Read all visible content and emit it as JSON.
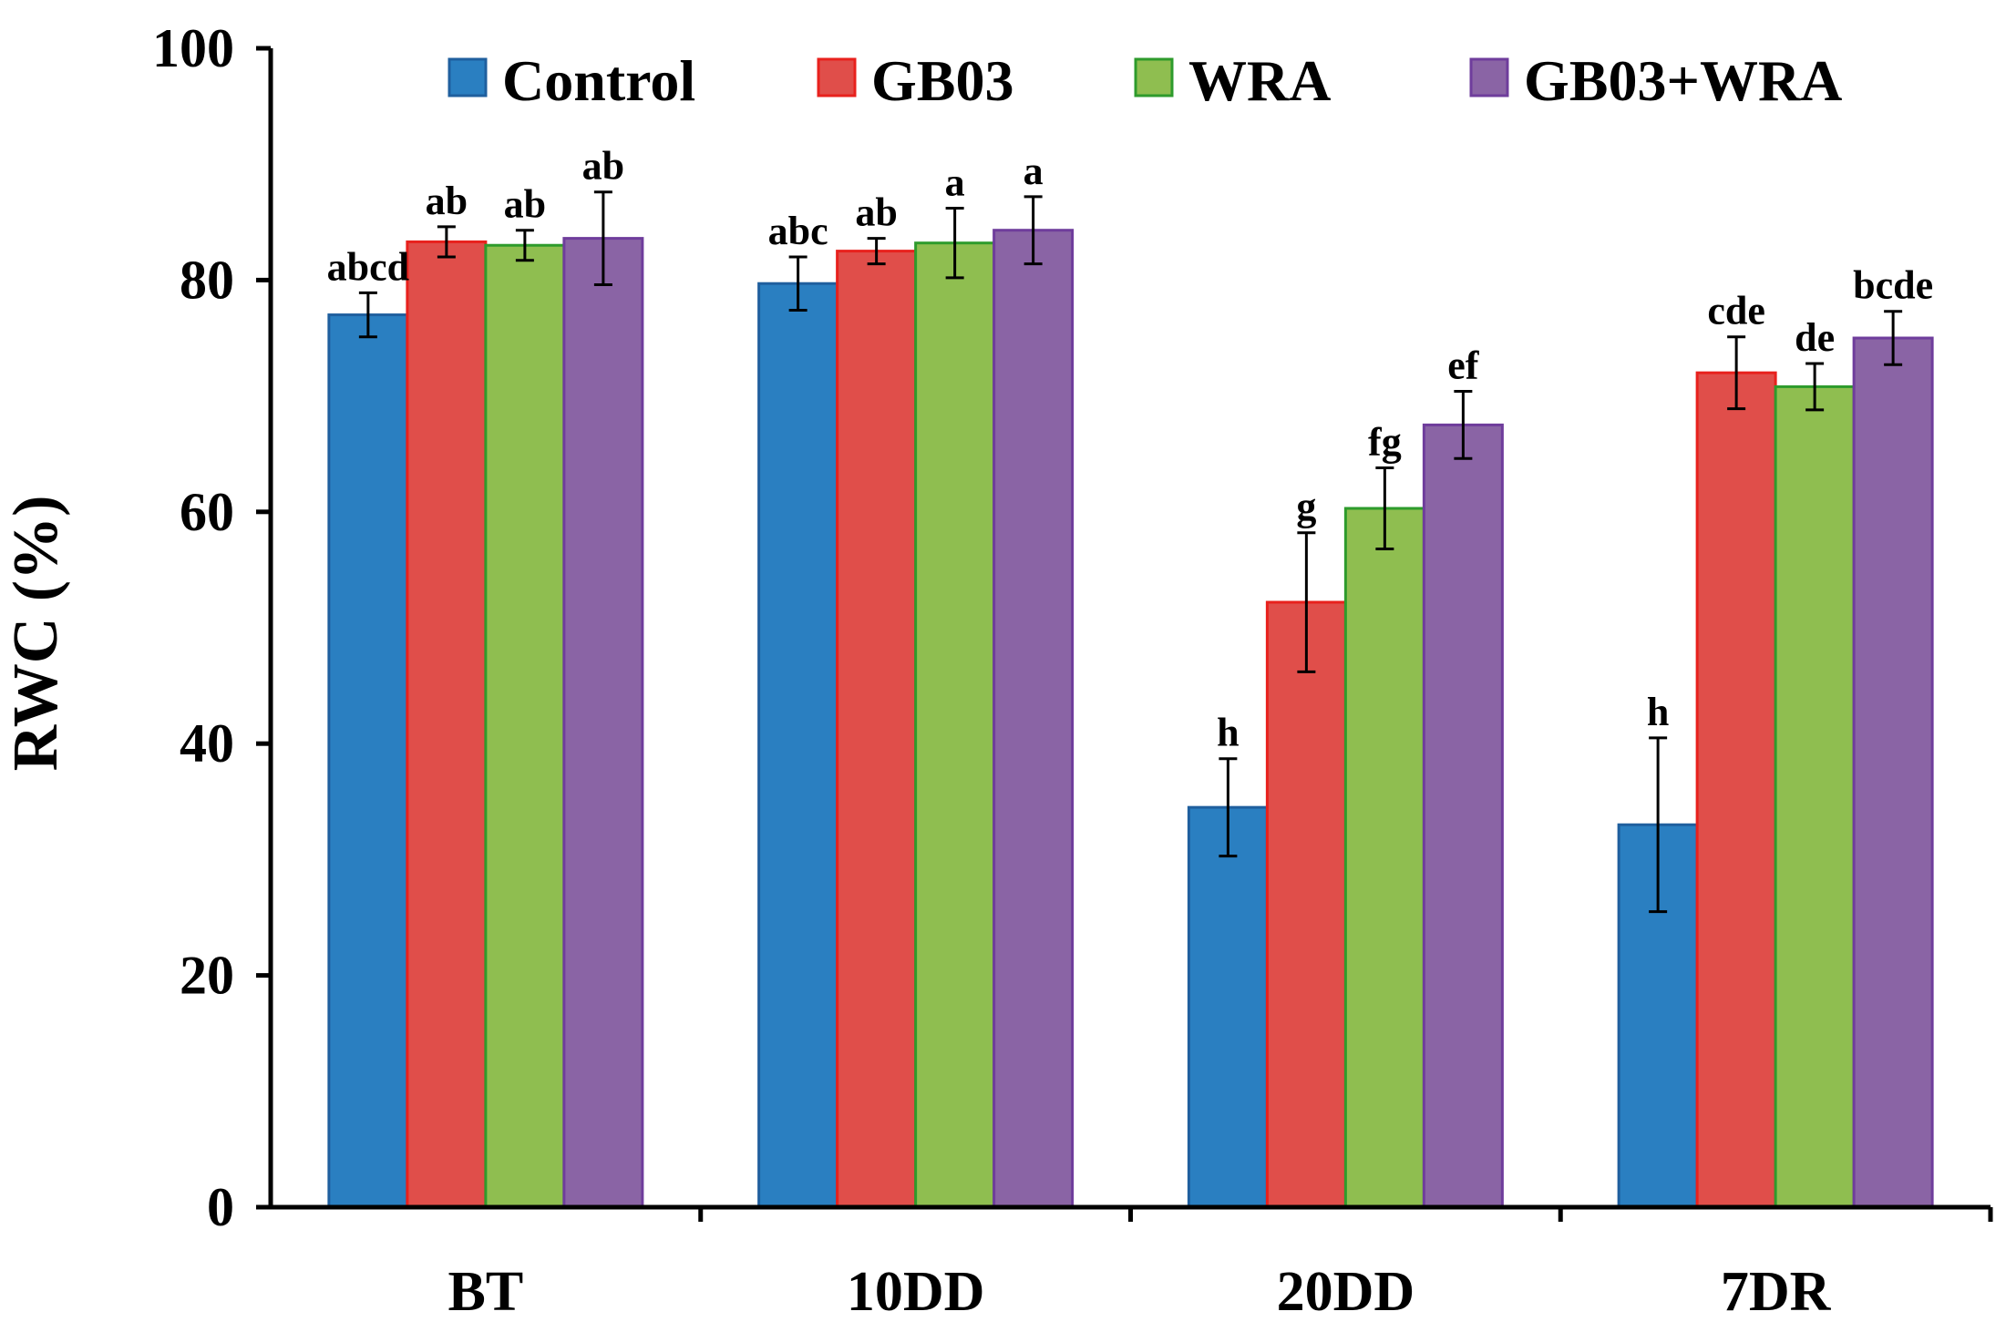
{
  "chart_data": {
    "type": "bar",
    "title": "",
    "xlabel": "",
    "ylabel": "RWC (%)",
    "ylim": [
      0,
      100
    ],
    "yticks": [
      0,
      20,
      40,
      60,
      80,
      100
    ],
    "categories": [
      "BT",
      "10DD",
      "20DD",
      "7DR"
    ],
    "legend_position": "top",
    "series": [
      {
        "name": "Control",
        "fill": "#2a7fc1",
        "stroke": "#1f5f9e",
        "values": [
          77.0,
          79.7,
          34.5,
          33.0
        ],
        "errors": [
          1.9,
          2.3,
          4.2,
          7.5
        ],
        "letters": [
          "abcd",
          "abc",
          "h",
          "h"
        ]
      },
      {
        "name": "GB03",
        "fill": "#e04e4a",
        "stroke": "#e8211d",
        "values": [
          83.3,
          82.5,
          52.2,
          72.0
        ],
        "errors": [
          1.3,
          1.1,
          6.0,
          3.1
        ],
        "letters": [
          "ab",
          "ab",
          "g",
          "cde"
        ]
      },
      {
        "name": "WRA",
        "fill": "#8fbe50",
        "stroke": "#2e9b2c",
        "values": [
          83.0,
          83.2,
          60.3,
          70.8
        ],
        "errors": [
          1.3,
          3.0,
          3.5,
          2.0
        ],
        "letters": [
          "ab",
          "a",
          "fg",
          "de"
        ]
      },
      {
        "name": "GB03+WRA",
        "fill": "#8a64a5",
        "stroke": "#6f3d9c",
        "values": [
          83.6,
          84.3,
          67.5,
          75.0
        ],
        "errors": [
          4.0,
          2.9,
          2.9,
          2.3
        ],
        "letters": [
          "ab",
          "a",
          "ef",
          "bcde"
        ]
      }
    ]
  }
}
